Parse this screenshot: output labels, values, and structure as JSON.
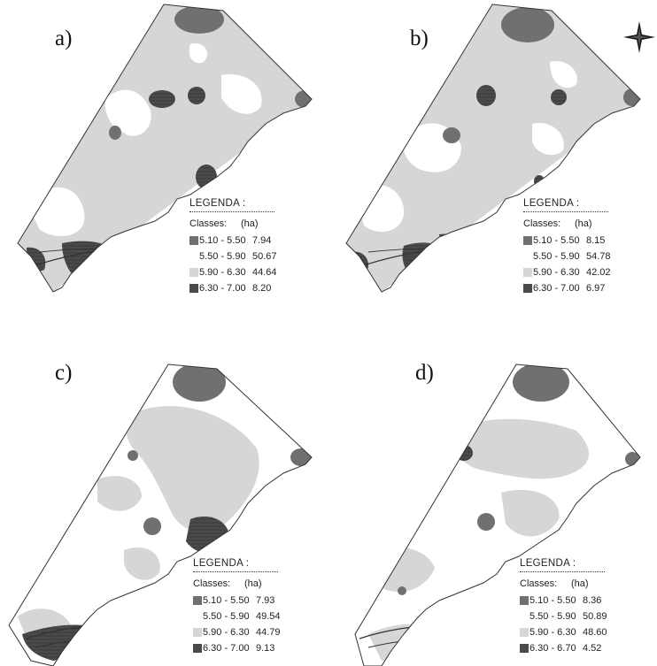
{
  "figure": {
    "colors": {
      "background": "#ffffff",
      "outline": "#333333",
      "class_1": "#707070",
      "class_2": "#ffffff",
      "class_3": "#d6d6d6",
      "class_4": "#4a4a4a"
    },
    "compass_icon": "north-arrow-star-icon",
    "panels": [
      {
        "label": "a)",
        "legend": {
          "title": "LEGENDA :",
          "col_classes": "Classes:",
          "col_area": "(ha)",
          "rows": [
            {
              "range": "5.10 - 5.50",
              "area": "7.94"
            },
            {
              "range": "5.50 - 5.90",
              "area": "50.67"
            },
            {
              "range": "5.90 - 6.30",
              "area": "44.64"
            },
            {
              "range": "6.30 - 7.00",
              "area": "8.20"
            }
          ]
        }
      },
      {
        "label": "b)",
        "legend": {
          "title": "LEGENDA :",
          "col_classes": "Classes:",
          "col_area": "(ha)",
          "rows": [
            {
              "range": "5.10 - 5.50",
              "area": "8.15"
            },
            {
              "range": "5.50 - 5.90",
              "area": "54.78"
            },
            {
              "range": "5.90 - 6.30",
              "area": "42.02"
            },
            {
              "range": "6.30 - 7.00",
              "area": "6.97"
            }
          ]
        }
      },
      {
        "label": "c)",
        "legend": {
          "title": "LEGENDA :",
          "col_classes": "Classes:",
          "col_area": "(ha)",
          "rows": [
            {
              "range": "5.10 - 5.50",
              "area": "7.93"
            },
            {
              "range": "5.50 - 5.90",
              "area": "49.54"
            },
            {
              "range": "5.90 - 6.30",
              "area": "44.79"
            },
            {
              "range": "6.30 - 7.00",
              "area": "9.13"
            }
          ]
        }
      },
      {
        "label": "d)",
        "legend": {
          "title": "LEGENDA :",
          "col_classes": "Classes:",
          "col_area": "(ha)",
          "rows": [
            {
              "range": "5.10 - 5.50",
              "area": "8.36"
            },
            {
              "range": "5.50 - 5.90",
              "area": "50.89"
            },
            {
              "range": "5.90 - 6.30",
              "area": "48.60"
            },
            {
              "range": "6.30 - 6.70",
              "area": "4.52"
            }
          ]
        }
      }
    ]
  }
}
